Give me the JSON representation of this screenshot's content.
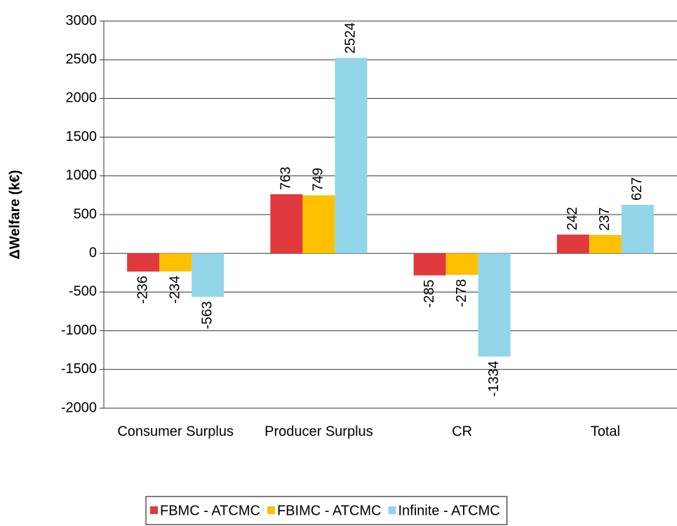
{
  "chart_data": {
    "type": "bar",
    "y_label": "ΔWelfare (k€)",
    "categories": [
      "Consumer Surplus",
      "Producer Surplus",
      "CR",
      "Total"
    ],
    "series": [
      {
        "name": "FBMC - ATCMC",
        "color": "#e0393e",
        "values": [
          -236,
          763,
          -285,
          242
        ]
      },
      {
        "name": "FBIMC - ATCMC",
        "color": "#ffc000",
        "values": [
          -234,
          749,
          -278,
          237
        ]
      },
      {
        "name": "Infinite - ATCMC",
        "color": "#92d5e8",
        "values": [
          -563,
          2524,
          -1334,
          627
        ]
      }
    ],
    "ylim": [
      -2000,
      3000
    ],
    "yticks": [
      -2000,
      -1500,
      -1000,
      -500,
      0,
      500,
      1000,
      1500,
      2000,
      2500,
      3000
    ],
    "grid": true,
    "legend": "bottom"
  }
}
